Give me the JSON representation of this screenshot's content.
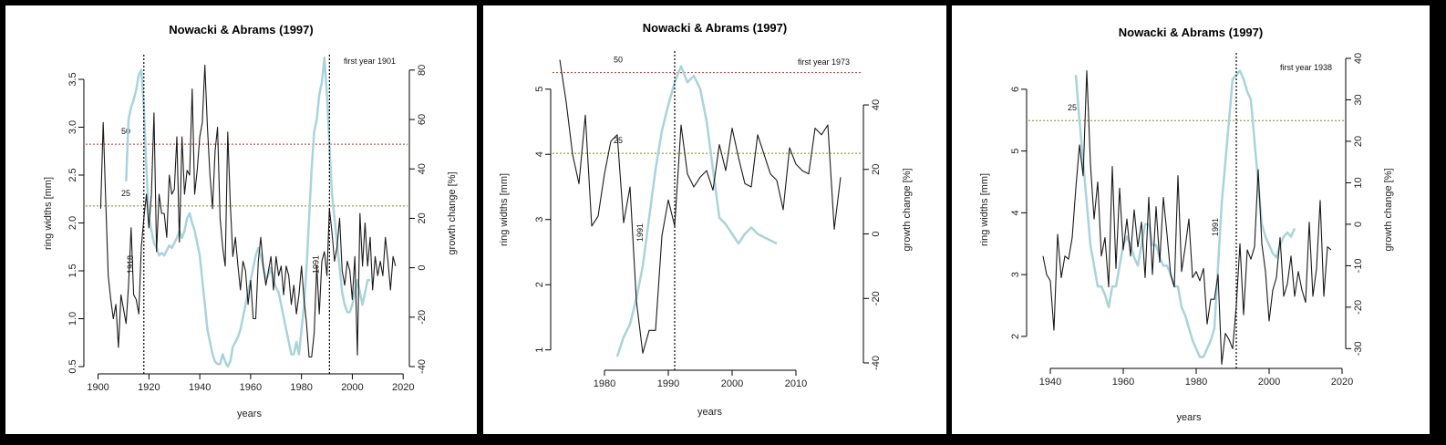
{
  "colors": {
    "ring_width_line": "#1a1a1a",
    "growth_change_line": "#a8d4dc",
    "threshold_50": "#d42a2a",
    "threshold_25": "#7e8a1c",
    "release_marker": "#000000"
  },
  "chart_data": [
    {
      "type": "line",
      "title": "Nowacki & Abrams (1997)",
      "xlabel": "years",
      "ylabel": "ring widths [mm]",
      "y2label": "growth change [%]",
      "first_year_label": "first year 1901",
      "xlim": [
        1898,
        2021
      ],
      "ylim": [
        0.5,
        3.7
      ],
      "y2lim": [
        -40,
        84
      ],
      "x_ticks": [
        "1900",
        "1920",
        "1940",
        "1960",
        "1980",
        "2000",
        "2020"
      ],
      "y_ticks": [
        "0.5",
        "1.0",
        "1.5",
        "2.0",
        "2.5",
        "3.0",
        "3.5"
      ],
      "y2_ticks": [
        "-40",
        "-20",
        "0",
        "20",
        "40",
        "60",
        "80"
      ],
      "thresholds": [
        {
          "label": "50",
          "value": 50
        },
        {
          "label": "25",
          "value": 25
        }
      ],
      "release_years": [
        {
          "label": "1918",
          "year": 1918
        },
        {
          "label": "1991",
          "year": 1991
        }
      ],
      "series": [
        {
          "x": [
            1901,
            1902,
            1903,
            1904,
            1905,
            1906,
            1907,
            1908,
            1909,
            1910,
            1911,
            1912,
            1913,
            1914,
            1915,
            1916,
            1917,
            1918,
            1919,
            1920,
            1921,
            1922,
            1923,
            1924,
            1925,
            1926,
            1927,
            1928,
            1929,
            1930,
            1931,
            1932,
            1933,
            1934,
            1935,
            1936,
            1937,
            1938,
            1939,
            1940,
            1941,
            1942,
            1943,
            1944,
            1945,
            1946,
            1947,
            1948,
            1949,
            1950,
            1951,
            1952,
            1953,
            1954,
            1955,
            1956,
            1957,
            1958,
            1959,
            1960,
            1961,
            1962,
            1963,
            1964,
            1965,
            1966,
            1967,
            1968,
            1969,
            1970,
            1971,
            1972,
            1973,
            1974,
            1975,
            1976,
            1977,
            1978,
            1979,
            1980,
            1981,
            1982,
            1983,
            1984,
            1985,
            1986,
            1987,
            1988,
            1989,
            1990,
            1991,
            1992,
            1993,
            1994,
            1995,
            1996,
            1997,
            1998,
            1999,
            2000,
            2001,
            2002,
            2003,
            2004,
            2005,
            2006,
            2007,
            2008,
            2009,
            2010,
            2011,
            2012,
            2013,
            2014,
            2015,
            2016,
            2017
          ],
          "values": [
            2.15,
            3.05,
            2.25,
            1.45,
            1.2,
            1.0,
            1.15,
            0.7,
            1.25,
            1.1,
            0.95,
            1.35,
            1.95,
            1.25,
            1.2,
            1.05,
            1.75,
            2.05,
            2.3,
            1.95,
            2.3,
            3.15,
            1.7,
            2.3,
            2.1,
            2.1,
            1.85,
            2.5,
            2.3,
            2.35,
            2.9,
            1.8,
            2.9,
            2.3,
            2.55,
            2.5,
            3.4,
            2.3,
            2.55,
            2.9,
            3.05,
            3.65,
            3.0,
            2.5,
            2.15,
            2.75,
            3.0,
            2.05,
            1.75,
            1.55,
            2.95,
            2.2,
            1.65,
            1.85,
            1.55,
            1.3,
            1.6,
            1.5,
            1.15,
            1.4,
            1.0,
            1.0,
            1.6,
            1.85,
            1.55,
            1.35,
            1.5,
            1.65,
            1.3,
            1.65,
            1.45,
            1.55,
            1.25,
            1.55,
            1.45,
            1.15,
            1.35,
            1.05,
            1.25,
            1.55,
            1.2,
            0.95,
            0.6,
            0.6,
            0.85,
            1.55,
            1.05,
            1.6,
            1.7,
            1.45,
            2.15,
            1.9,
            1.6,
            1.75,
            2.05,
            1.5,
            1.35,
            1.6,
            1.5,
            1.2,
            1.65,
            0.62,
            2.1,
            1.55,
            2.0,
            1.55,
            1.85,
            1.3,
            1.65,
            1.45,
            1.6,
            1.45,
            1.85,
            1.6,
            1.3,
            1.65,
            1.55
          ],
          "y_axis": "left"
        },
        {
          "x": [
            1911,
            1912,
            1913,
            1914,
            1915,
            1916,
            1917,
            1918,
            1919,
            1920,
            1921,
            1922,
            1923,
            1924,
            1925,
            1926,
            1927,
            1928,
            1929,
            1930,
            1931,
            1932,
            1933,
            1934,
            1935,
            1936,
            1937,
            1938,
            1939,
            1940,
            1941,
            1942,
            1943,
            1944,
            1945,
            1946,
            1947,
            1948,
            1949,
            1950,
            1951,
            1952,
            1953,
            1954,
            1955,
            1956,
            1957,
            1958,
            1959,
            1960,
            1961,
            1962,
            1963,
            1964,
            1965,
            1966,
            1967,
            1968,
            1969,
            1970,
            1971,
            1972,
            1973,
            1974,
            1975,
            1976,
            1977,
            1978,
            1979,
            1980,
            1981,
            1982,
            1983,
            1984,
            1985,
            1986,
            1987,
            1988,
            1989,
            1990,
            1991,
            1992,
            1993,
            1994,
            1995,
            1996,
            1997,
            1998,
            1999,
            2000,
            2001,
            2002,
            2003,
            2004,
            2005,
            2006,
            2007
          ],
          "values": [
            35,
            60,
            65,
            68,
            72,
            78,
            80,
            65,
            40,
            20,
            15,
            10,
            8,
            5,
            6,
            5,
            7,
            9,
            8,
            10,
            12,
            15,
            12,
            15,
            20,
            22,
            18,
            15,
            10,
            5,
            -5,
            -15,
            -25,
            -30,
            -35,
            -38,
            -39,
            -39,
            -35,
            -38,
            -40,
            -38,
            -32,
            -30,
            -28,
            -25,
            -20,
            -15,
            -10,
            -5,
            0,
            5,
            8,
            5,
            0,
            -5,
            -3,
            0,
            -5,
            -8,
            -10,
            -15,
            -20,
            -25,
            -30,
            -35,
            -35,
            -30,
            -35,
            -25,
            -15,
            0,
            20,
            40,
            55,
            60,
            70,
            75,
            85,
            70,
            50,
            30,
            20,
            10,
            0,
            -10,
            -15,
            -18,
            -18,
            -15,
            -10,
            -5,
            -10,
            -15,
            -10,
            -5,
            -5
          ],
          "y_axis": "right"
        }
      ]
    },
    {
      "type": "line",
      "title": "Nowacki & Abrams (1997)",
      "xlabel": "years",
      "ylabel": "ring widths [mm]",
      "y2label": "growth change [%]",
      "first_year_label": "first year 1973",
      "xlim": [
        1973,
        2020
      ],
      "ylim": [
        0.8,
        5.5
      ],
      "y2lim": [
        -40,
        55
      ],
      "x_ticks": [
        "1980",
        "1990",
        "2000",
        "2010"
      ],
      "y_ticks": [
        "1",
        "2",
        "3",
        "4",
        "5"
      ],
      "y2_ticks": [
        "-40",
        "-20",
        "0",
        "20",
        "40"
      ],
      "thresholds": [
        {
          "label": "50",
          "value": 50
        },
        {
          "label": "25",
          "value": 25
        }
      ],
      "release_years": [
        {
          "label": "1991",
          "year": 1991
        }
      ],
      "series": [
        {
          "x": [
            1973,
            1974,
            1975,
            1976,
            1977,
            1978,
            1979,
            1980,
            1981,
            1982,
            1983,
            1984,
            1985,
            1986,
            1987,
            1988,
            1989,
            1990,
            1991,
            1992,
            1993,
            1994,
            1995,
            1996,
            1997,
            1998,
            1999,
            2000,
            2001,
            2002,
            2003,
            2004,
            2005,
            2006,
            2007,
            2008,
            2009,
            2010,
            2011,
            2012,
            2013,
            2014,
            2015,
            2016,
            2017
          ],
          "values": [
            5.45,
            4.8,
            4.0,
            3.55,
            4.6,
            2.9,
            3.05,
            3.7,
            4.2,
            4.3,
            2.95,
            3.5,
            1.75,
            0.95,
            1.3,
            1.3,
            2.75,
            3.3,
            2.9,
            4.45,
            3.7,
            3.5,
            3.65,
            3.75,
            3.45,
            4.15,
            3.75,
            4.4,
            3.95,
            3.55,
            3.5,
            4.3,
            4.0,
            3.7,
            3.6,
            3.15,
            4.1,
            3.85,
            3.75,
            3.7,
            4.4,
            4.3,
            4.45,
            2.85,
            3.65
          ],
          "y_axis": "left"
        },
        {
          "x": [
            1982,
            1983,
            1984,
            1985,
            1986,
            1987,
            1988,
            1989,
            1990,
            1991,
            1992,
            1993,
            1994,
            1995,
            1996,
            1997,
            1998,
            1999,
            2000,
            2001,
            2002,
            2003,
            2004,
            2005,
            2006,
            2007
          ],
          "values": [
            -38,
            -32,
            -28,
            -20,
            -10,
            5,
            20,
            32,
            40,
            47,
            52,
            47,
            49,
            45,
            35,
            20,
            5,
            3,
            0,
            -3,
            0,
            2,
            0,
            -1,
            -2,
            -3
          ],
          "y_axis": "right"
        }
      ]
    },
    {
      "type": "line",
      "title": "Nowacki & Abrams (1997)",
      "xlabel": "years",
      "ylabel": "ring widths [mm]",
      "y2label": "growth change [%]",
      "first_year_label": "first year 1938",
      "xlim": [
        1936,
        2020
      ],
      "ylim": [
        1.6,
        6.5
      ],
      "y2lim": [
        -33,
        40
      ],
      "x_ticks": [
        "1940",
        "1960",
        "1980",
        "2000",
        "2020"
      ],
      "y_ticks": [
        "2",
        "3",
        "4",
        "5",
        "6"
      ],
      "y2_ticks": [
        "-30",
        "-20",
        "-10",
        "0",
        "10",
        "20",
        "30",
        "40"
      ],
      "thresholds": [
        {
          "label": "25",
          "value": 25
        }
      ],
      "release_years": [
        {
          "label": "1991",
          "year": 1991
        }
      ],
      "series": [
        {
          "x": [
            1938,
            1939,
            1940,
            1941,
            1942,
            1943,
            1944,
            1945,
            1946,
            1947,
            1948,
            1949,
            1950,
            1951,
            1952,
            1953,
            1954,
            1955,
            1956,
            1957,
            1958,
            1959,
            1960,
            1961,
            1962,
            1963,
            1964,
            1965,
            1966,
            1967,
            1968,
            1969,
            1970,
            1971,
            1972,
            1973,
            1974,
            1975,
            1976,
            1977,
            1978,
            1979,
            1980,
            1981,
            1982,
            1983,
            1984,
            1985,
            1986,
            1987,
            1988,
            1989,
            1990,
            1991,
            1992,
            1993,
            1994,
            1995,
            1996,
            1997,
            1998,
            1999,
            2000,
            2001,
            2002,
            2003,
            2004,
            2005,
            2006,
            2007,
            2008,
            2009,
            2010,
            2011,
            2012,
            2013,
            2014,
            2015,
            2016,
            2017
          ],
          "values": [
            3.3,
            3.0,
            2.9,
            2.1,
            3.65,
            2.95,
            3.3,
            3.25,
            3.6,
            4.4,
            5.1,
            4.6,
            6.3,
            4.8,
            3.9,
            4.5,
            3.3,
            3.6,
            2.8,
            4.75,
            3.1,
            4.4,
            3.4,
            3.9,
            3.3,
            4.05,
            3.45,
            3.85,
            2.95,
            4.25,
            3.0,
            4.1,
            3.2,
            4.25,
            3.65,
            3.0,
            2.8,
            4.6,
            3.05,
            3.45,
            3.9,
            2.95,
            3.05,
            2.9,
            3.1,
            2.2,
            2.6,
            2.6,
            3.0,
            1.55,
            2.05,
            1.95,
            1.8,
            2.5,
            3.5,
            2.35,
            3.4,
            3.25,
            3.45,
            4.7,
            3.5,
            3.05,
            2.25,
            2.75,
            2.95,
            3.6,
            2.65,
            2.85,
            3.3,
            2.65,
            3.05,
            2.75,
            2.55,
            3.85,
            2.65,
            3.1,
            4.2,
            2.65,
            3.45,
            3.4
          ],
          "y_axis": "left"
        },
        {
          "x": [
            1947,
            1948,
            1949,
            1950,
            1951,
            1952,
            1953,
            1954,
            1955,
            1956,
            1957,
            1958,
            1959,
            1960,
            1961,
            1962,
            1963,
            1964,
            1965,
            1966,
            1967,
            1968,
            1969,
            1970,
            1971,
            1972,
            1973,
            1974,
            1975,
            1976,
            1977,
            1978,
            1979,
            1980,
            1981,
            1982,
            1983,
            1984,
            1985,
            1986,
            1987,
            1988,
            1989,
            1990,
            1991,
            1992,
            1993,
            1994,
            1995,
            1996,
            1997,
            1998,
            1999,
            2000,
            2001,
            2002,
            2003,
            2004,
            2005,
            2006,
            2007
          ],
          "values": [
            36,
            25,
            15,
            5,
            -5,
            -10,
            -15,
            -15,
            -17,
            -20,
            -15,
            -15,
            -10,
            -5,
            -3,
            -5,
            -8,
            -10,
            -5,
            0,
            0,
            -5,
            -5,
            -8,
            -10,
            -10,
            -12,
            -15,
            -15,
            -20,
            -22,
            -25,
            -28,
            -30,
            -32,
            -32,
            -30,
            -28,
            -25,
            -10,
            5,
            15,
            25,
            35,
            36,
            37,
            35,
            32,
            30,
            20,
            10,
            0,
            -3,
            -5,
            -7,
            -8,
            -5,
            -3,
            -2,
            -3,
            -1
          ],
          "y_axis": "right"
        }
      ]
    }
  ]
}
